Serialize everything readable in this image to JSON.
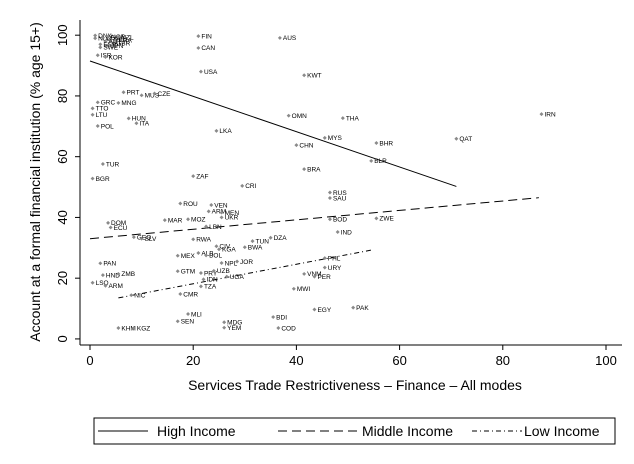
{
  "chart_data": {
    "type": "scatter",
    "xlabel": "Services Trade Restrictiveness – Finance – All modes",
    "ylabel": "Account at a formal financial institution (% age 15+)",
    "xlim": [
      0,
      100
    ],
    "ylim": [
      -2,
      105
    ],
    "x_ticks": [
      "0",
      "20",
      "40",
      "60",
      "80",
      "100"
    ],
    "y_ticks": [
      "0",
      "20",
      "40",
      "60",
      "80",
      "100"
    ],
    "grid": false,
    "legend_position": "bottom",
    "points": [
      {
        "label": "DNK",
        "x": 1.0,
        "y": 99.9
      },
      {
        "label": "NLD",
        "x": 1.0,
        "y": 99.0
      },
      {
        "label": "BEL",
        "x": 2.5,
        "y": 99.2
      },
      {
        "label": "NOR",
        "x": 3.5,
        "y": 99.5
      },
      {
        "label": "DEU",
        "x": 4.0,
        "y": 98.6
      },
      {
        "label": "FRA",
        "x": 5.0,
        "y": 98.3
      },
      {
        "label": "NZL",
        "x": 5.5,
        "y": 99.4
      },
      {
        "label": "AUT",
        "x": 3.0,
        "y": 98.0
      },
      {
        "label": "GBR",
        "x": 4.5,
        "y": 97.4
      },
      {
        "label": "ESP",
        "x": 2.0,
        "y": 97.0
      },
      {
        "label": "JPN",
        "x": 3.5,
        "y": 96.6
      },
      {
        "label": "SWE",
        "x": 2.0,
        "y": 96.0
      },
      {
        "label": "ISR",
        "x": 1.5,
        "y": 93.4
      },
      {
        "label": "KOR",
        "x": 3.0,
        "y": 92.8
      },
      {
        "label": "FIN",
        "x": 21.0,
        "y": 99.7
      },
      {
        "label": "AUS",
        "x": 36.8,
        "y": 99.1
      },
      {
        "label": "CAN",
        "x": 21.0,
        "y": 95.8
      },
      {
        "label": "USA",
        "x": 21.5,
        "y": 88.0
      },
      {
        "label": "KWT",
        "x": 41.5,
        "y": 86.8
      },
      {
        "label": "PRT",
        "x": 6.5,
        "y": 81.2
      },
      {
        "label": "MUS",
        "x": 10.0,
        "y": 80.2
      },
      {
        "label": "CZE",
        "x": 12.5,
        "y": 80.8
      },
      {
        "label": "GRC",
        "x": 1.5,
        "y": 77.9
      },
      {
        "label": "MNG",
        "x": 5.5,
        "y": 77.7
      },
      {
        "label": "TTO",
        "x": 0.5,
        "y": 75.9
      },
      {
        "label": "LTU",
        "x": 0.5,
        "y": 73.8
      },
      {
        "label": "HUN",
        "x": 7.5,
        "y": 72.6
      },
      {
        "label": "ITA",
        "x": 9.0,
        "y": 71.0
      },
      {
        "label": "POL",
        "x": 1.5,
        "y": 70.1
      },
      {
        "label": "OMN",
        "x": 38.5,
        "y": 73.5
      },
      {
        "label": "THA",
        "x": 49.0,
        "y": 72.7
      },
      {
        "label": "IRN",
        "x": 87.5,
        "y": 74.0
      },
      {
        "label": "LKA",
        "x": 24.5,
        "y": 68.5
      },
      {
        "label": "MYS",
        "x": 45.5,
        "y": 66.2
      },
      {
        "label": "QAT",
        "x": 71.0,
        "y": 65.9
      },
      {
        "label": "BHR",
        "x": 55.5,
        "y": 64.5
      },
      {
        "label": "CHN",
        "x": 40.0,
        "y": 63.8
      },
      {
        "label": "BLR",
        "x": 54.5,
        "y": 58.6
      },
      {
        "label": "TUR",
        "x": 2.5,
        "y": 57.6
      },
      {
        "label": "BRA",
        "x": 41.5,
        "y": 55.9
      },
      {
        "label": "ZAF",
        "x": 20.0,
        "y": 53.6
      },
      {
        "label": "BGR",
        "x": 0.5,
        "y": 52.8
      },
      {
        "label": "CRI",
        "x": 29.5,
        "y": 50.4
      },
      {
        "label": "RUS",
        "x": 46.5,
        "y": 48.2
      },
      {
        "label": "SAU",
        "x": 46.5,
        "y": 46.4
      },
      {
        "label": "ROU",
        "x": 17.5,
        "y": 44.6
      },
      {
        "label": "VEN",
        "x": 23.5,
        "y": 44.1
      },
      {
        "label": "ARM_2",
        "x": 23.0,
        "y": 42.0
      },
      {
        "label": "MEN",
        "x": 25.5,
        "y": 41.6
      },
      {
        "label": "UKR",
        "x": 25.5,
        "y": 40.0
      },
      {
        "label": "MAR",
        "x": 14.5,
        "y": 39.1
      },
      {
        "label": "MOZ",
        "x": 19.0,
        "y": 39.4
      },
      {
        "label": "BOD",
        "x": 46.5,
        "y": 39.4
      },
      {
        "label": "ZWE",
        "x": 55.5,
        "y": 39.7
      },
      {
        "label": "DOM",
        "x": 3.5,
        "y": 38.2
      },
      {
        "label": "ECU",
        "x": 4.0,
        "y": 36.7
      },
      {
        "label": "LBN",
        "x": 22.5,
        "y": 37.0
      },
      {
        "label": "IND",
        "x": 48.0,
        "y": 35.2
      },
      {
        "label": "GEO",
        "x": 8.5,
        "y": 33.5
      },
      {
        "label": "SLV",
        "x": 10.0,
        "y": 33.0
      },
      {
        "label": "RWA",
        "x": 20.0,
        "y": 32.8
      },
      {
        "label": "TUN",
        "x": 31.5,
        "y": 32.2
      },
      {
        "label": "DZA",
        "x": 35.0,
        "y": 33.3
      },
      {
        "label": "CIV",
        "x": 24.5,
        "y": 30.5
      },
      {
        "label": "KGA",
        "x": 25.0,
        "y": 29.5
      },
      {
        "label": "BWA",
        "x": 30.0,
        "y": 30.2
      },
      {
        "label": "ALB",
        "x": 21.0,
        "y": 28.3
      },
      {
        "label": "BOL",
        "x": 22.5,
        "y": 27.5
      },
      {
        "label": "MEX",
        "x": 17.0,
        "y": 27.4
      },
      {
        "label": "JOR",
        "x": 28.5,
        "y": 25.5
      },
      {
        "label": "NPL",
        "x": 25.5,
        "y": 25.0
      },
      {
        "label": "PAN",
        "x": 2.0,
        "y": 24.9
      },
      {
        "label": "PHL",
        "x": 45.5,
        "y": 26.6
      },
      {
        "label": "URY",
        "x": 45.5,
        "y": 23.5
      },
      {
        "label": "GTM",
        "x": 17.0,
        "y": 22.3
      },
      {
        "label": "PRY",
        "x": 21.5,
        "y": 21.7
      },
      {
        "label": "UZB",
        "x": 24.0,
        "y": 22.4
      },
      {
        "label": "VNM",
        "x": 41.5,
        "y": 21.4
      },
      {
        "label": "PER",
        "x": 43.5,
        "y": 20.5
      },
      {
        "label": "HND",
        "x": 2.5,
        "y": 21.0
      },
      {
        "label": "ZMB",
        "x": 5.5,
        "y": 21.4
      },
      {
        "label": "IDN",
        "x": 22.0,
        "y": 19.6
      },
      {
        "label": "UGA",
        "x": 26.5,
        "y": 20.5
      },
      {
        "label": "LSO",
        "x": 0.5,
        "y": 18.5
      },
      {
        "label": "ARM",
        "x": 3.0,
        "y": 17.5
      },
      {
        "label": "TZA",
        "x": 21.5,
        "y": 17.3
      },
      {
        "label": "MWI",
        "x": 39.5,
        "y": 16.5
      },
      {
        "label": "NIC",
        "x": 8.0,
        "y": 14.4
      },
      {
        "label": "CMR",
        "x": 17.5,
        "y": 14.8
      },
      {
        "label": "EGY",
        "x": 43.5,
        "y": 9.7
      },
      {
        "label": "PAK",
        "x": 51.0,
        "y": 10.3
      },
      {
        "label": "MLI",
        "x": 19.0,
        "y": 8.2
      },
      {
        "label": "SEN",
        "x": 17.0,
        "y": 5.8
      },
      {
        "label": "BDI",
        "x": 35.5,
        "y": 7.2
      },
      {
        "label": "MDG",
        "x": 26.0,
        "y": 5.5
      },
      {
        "label": "KHM",
        "x": 5.5,
        "y": 3.6
      },
      {
        "label": "KGZ",
        "x": 8.5,
        "y": 3.6
      },
      {
        "label": "YEM",
        "x": 26.0,
        "y": 3.7
      },
      {
        "label": "COD",
        "x": 36.5,
        "y": 3.6
      }
    ],
    "series": [
      {
        "name": "High Income",
        "style": "solid",
        "x": [
          0,
          71
        ],
        "y": [
          91.5,
          50.2
        ]
      },
      {
        "name": "Middle Income",
        "style": "dashed",
        "x": [
          0,
          87
        ],
        "y": [
          33.0,
          46.5
        ]
      },
      {
        "name": "Low Income",
        "style": "dashdot",
        "x": [
          5.5,
          55
        ],
        "y": [
          13.5,
          29.4
        ]
      }
    ],
    "colors": {
      "marker": "#8a8a8a",
      "line": "#000000",
      "axis": "#000000"
    }
  }
}
